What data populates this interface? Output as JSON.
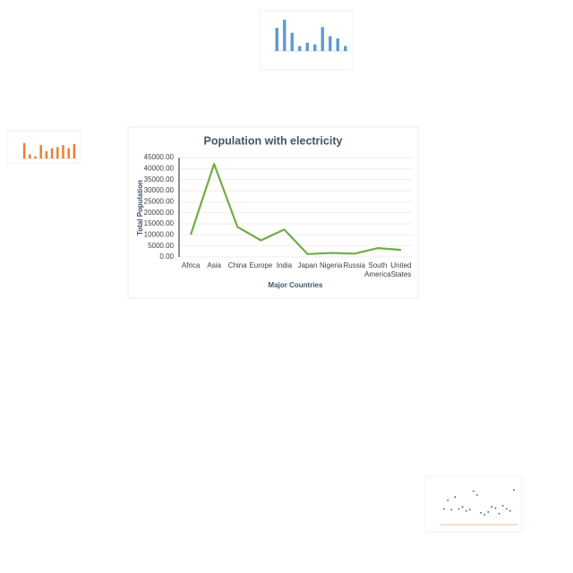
{
  "chart_data": [
    {
      "type": "line",
      "title": "Population with electricity",
      "x_label": "Major Countries",
      "y_label": "Total Population",
      "categories": [
        "Africa",
        "Asia",
        "China",
        "Europe",
        "India",
        "Japan",
        "Nigeria",
        "Russia",
        "South America",
        "United States"
      ],
      "values": [
        10100,
        42100,
        13600,
        7500,
        12400,
        1300,
        1800,
        1500,
        4000,
        3200
      ],
      "color": "#70ad47",
      "ylim": [
        0,
        45000
      ],
      "yticks": [
        {
          "value": 0,
          "label": "0.00"
        },
        {
          "value": 5000,
          "label": "5000.00"
        },
        {
          "value": 10000,
          "label": "10000.00"
        },
        {
          "value": 15000,
          "label": "15000.00"
        },
        {
          "value": 20000,
          "label": "20000.00"
        },
        {
          "value": 25000,
          "label": "25000.00"
        },
        {
          "value": 30000,
          "label": "30000.00"
        },
        {
          "value": 35000,
          "label": "35000.00"
        },
        {
          "value": 40000,
          "label": "40000.00"
        },
        {
          "value": 45000,
          "label": "45000.00"
        }
      ],
      "grid": true
    },
    {
      "type": "bar",
      "values": [
        70,
        95,
        55,
        15,
        25,
        20,
        72,
        45,
        38,
        15
      ],
      "color": "#5b9bd5",
      "ylim": [
        0,
        100
      ]
    },
    {
      "type": "bar",
      "values": [
        75,
        20,
        10,
        65,
        35,
        50,
        55,
        65,
        50,
        70
      ],
      "color": "#ed7d31",
      "ylim": [
        0,
        100
      ]
    },
    {
      "type": "scatter",
      "x": [
        1,
        2,
        3,
        4,
        5,
        6,
        7,
        8,
        9,
        10,
        11,
        12,
        13,
        14,
        15,
        16,
        17,
        18,
        19,
        20
      ],
      "values": [
        40,
        62,
        38,
        70,
        40,
        45,
        35,
        38,
        85,
        75,
        30,
        25,
        32,
        45,
        42,
        28,
        48,
        40,
        35,
        88
      ],
      "color": "#44546a",
      "xlim": [
        0,
        21
      ],
      "ylim": [
        0,
        100
      ]
    }
  ]
}
